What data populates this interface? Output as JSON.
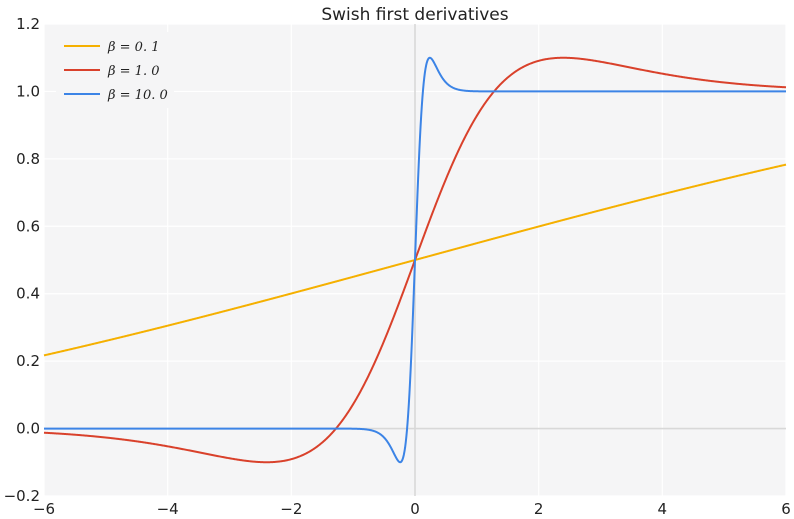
{
  "chart_data": {
    "type": "line",
    "title": "Swish first derivatives",
    "xlabel": "",
    "ylabel": "",
    "xlim": [
      -6,
      6
    ],
    "ylim": [
      -0.2,
      1.2
    ],
    "xticks": [
      -6,
      -4,
      -2,
      0,
      2,
      4,
      6
    ],
    "xtick_labels": [
      "−6",
      "−4",
      "−2",
      "0",
      "2",
      "4",
      "6"
    ],
    "yticks": [
      -0.2,
      0.0,
      0.2,
      0.4,
      0.6,
      0.8,
      1.0,
      1.2
    ],
    "ytick_labels": [
      "−0.2",
      "0.0",
      "0.2",
      "0.4",
      "0.6",
      "0.8",
      "1.0",
      "1.2"
    ],
    "grid": true,
    "legend_position": "top-left",
    "function": "d/dx [x * sigmoid(beta * x)]",
    "series": [
      {
        "name": "β = 0. 1",
        "beta": 0.1,
        "color": "#f5b000",
        "x": [
          -6,
          -5,
          -4,
          -3,
          -2,
          -1,
          0,
          1,
          2,
          3,
          4,
          5,
          6
        ],
        "values": [
          0.216,
          0.253,
          0.301,
          0.351,
          0.401,
          0.45,
          0.5,
          0.55,
          0.599,
          0.649,
          0.697,
          0.747,
          0.784
        ]
      },
      {
        "name": "β = 1. 0",
        "beta": 1.0,
        "color": "#d9412b",
        "x": [
          -6,
          -5,
          -4,
          -3,
          -2.4,
          -2,
          -1.5,
          -1,
          -0.5,
          0,
          0.5,
          1,
          1.5,
          2,
          2.4,
          3,
          4,
          5,
          6
        ],
        "values": [
          -0.012,
          -0.027,
          -0.053,
          -0.088,
          -0.1,
          -0.091,
          -0.048,
          0.073,
          0.26,
          0.5,
          0.74,
          0.927,
          1.048,
          1.091,
          1.1,
          1.088,
          1.053,
          1.027,
          1.012
        ]
      },
      {
        "name": "β = 10. 0",
        "beta": 10.0,
        "color": "#3c84e6",
        "x": [
          -6,
          -1,
          -0.5,
          -0.3,
          -0.24,
          -0.2,
          -0.1,
          0,
          0.1,
          0.2,
          0.24,
          0.3,
          0.5,
          1,
          6
        ],
        "values": [
          0.0,
          0.0,
          -0.002,
          -0.083,
          -0.1,
          -0.092,
          0.035,
          0.5,
          0.965,
          1.092,
          1.1,
          1.083,
          1.002,
          1.0,
          1.0
        ]
      }
    ]
  }
}
